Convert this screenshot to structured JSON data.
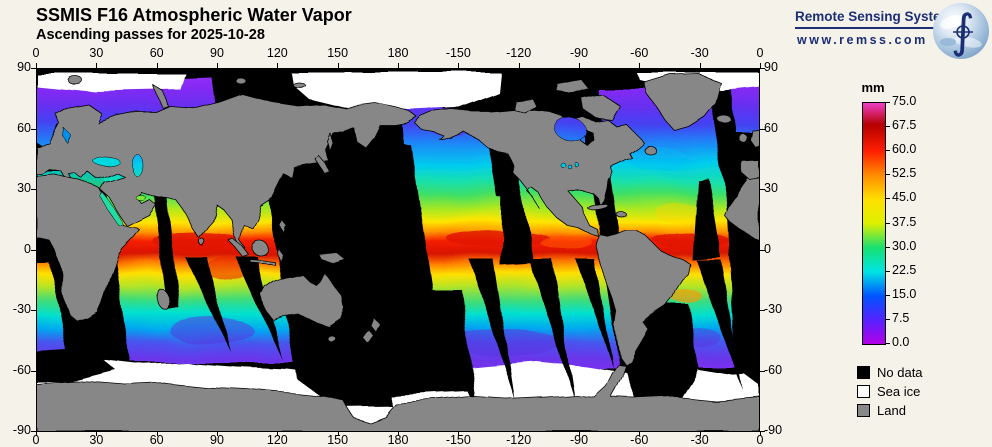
{
  "header": {
    "title": "SSMIS F16 Atmospheric Water Vapor",
    "subtitle": "Ascending passes for 2025-10-28"
  },
  "logo": {
    "company": "Remote Sensing Systems",
    "website": "www.remss.com"
  },
  "axes": {
    "lon_labels": [
      "0",
      "30",
      "60",
      "90",
      "120",
      "150",
      "180",
      "-150",
      "-120",
      "-90",
      "-60",
      "-30",
      "0"
    ],
    "lat_labels": [
      "90",
      "60",
      "30",
      "0",
      "-30",
      "-60",
      "-90"
    ]
  },
  "colorbar": {
    "unit": "mm",
    "tick_labels": [
      "75.0",
      "67.5",
      "60.0",
      "52.5",
      "45.0",
      "37.5",
      "30.0",
      "22.5",
      "15.0",
      "7.5",
      "0.0"
    ],
    "min": 0.0,
    "max": 75.0,
    "color_low": "#b400e6",
    "color_mid": "#18e070",
    "color_high": "#ee3fc8"
  },
  "legend": {
    "items": [
      {
        "label": "No data",
        "color": "#000000"
      },
      {
        "label": "Sea ice",
        "color": "#ffffff"
      },
      {
        "label": "Land",
        "color": "#888888"
      }
    ]
  },
  "map": {
    "description": "Global cylindrical map 0-360E longitude, 90N-90S latitude",
    "ocean_no_data_color": "#000000",
    "sea_ice_color": "#ffffff",
    "land_color": "#878787",
    "itcz_color": "#e01000"
  }
}
